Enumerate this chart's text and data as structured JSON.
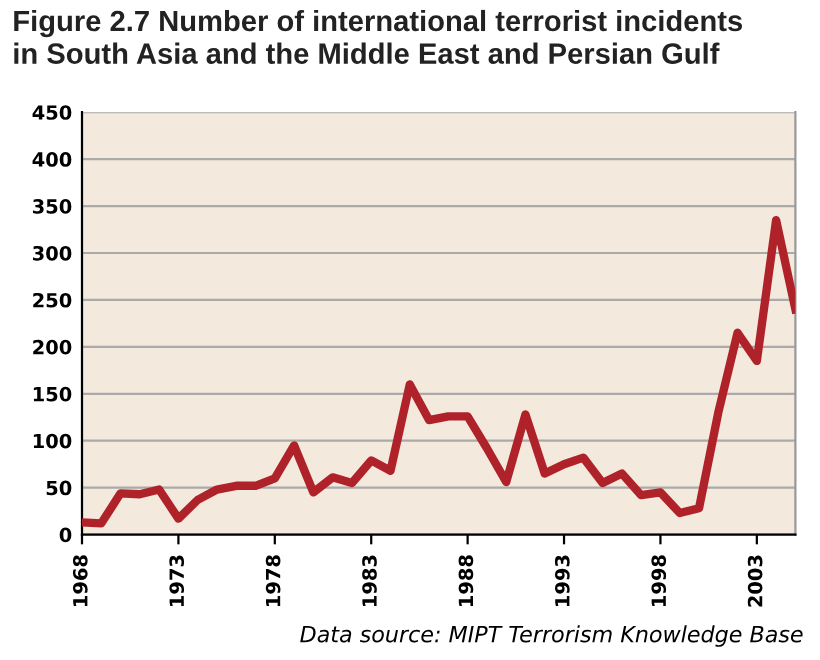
{
  "chart_data": {
    "type": "line",
    "title": "Figure 2.7 Number of international terrorist incidents\nin South Asia and the Middle East and Persian Gulf",
    "x": [
      1968,
      1969,
      1970,
      1971,
      1972,
      1973,
      1974,
      1975,
      1976,
      1977,
      1978,
      1979,
      1980,
      1981,
      1982,
      1983,
      1984,
      1985,
      1986,
      1987,
      1988,
      1989,
      1990,
      1991,
      1992,
      1993,
      1994,
      1995,
      1996,
      1997,
      1998,
      1999,
      2000,
      2001,
      2002,
      2003,
      2004,
      2005
    ],
    "series": [
      {
        "color": "#b0222a",
        "values": [
          13,
          12,
          44,
          43,
          48,
          17,
          37,
          48,
          52,
          52,
          60,
          95,
          45,
          61,
          55,
          79,
          68,
          160,
          122,
          126,
          126,
          92,
          56,
          128,
          65,
          75,
          82,
          55,
          65,
          42,
          45,
          23,
          28,
          130,
          215,
          185,
          335,
          240
        ]
      }
    ],
    "xlim": [
      1968,
      2005
    ],
    "xticks": [
      1968,
      1973,
      1978,
      1983,
      1988,
      1993,
      1998,
      2003
    ],
    "ylim": [
      0,
      450
    ],
    "yticks": [
      0,
      50,
      100,
      150,
      200,
      250,
      300,
      350,
      400,
      450
    ],
    "grid": "y",
    "line_style": "solid",
    "annotations": [
      "Data source: MIPT Terrorism Knowledge Base"
    ]
  }
}
